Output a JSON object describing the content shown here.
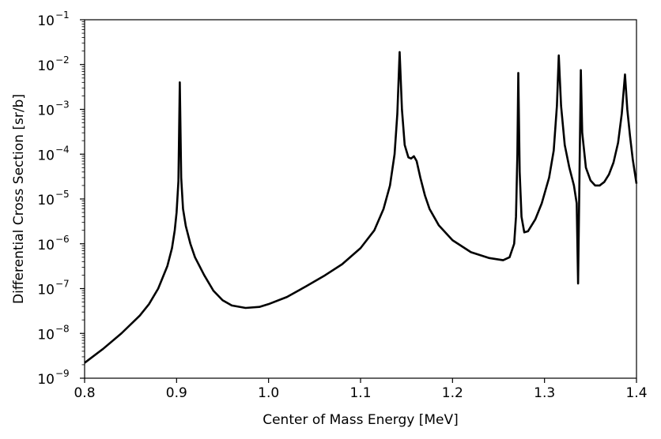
{
  "chart_data": {
    "type": "line",
    "xlabel": "Center of Mass Energy [MeV]",
    "ylabel": "Differential Cross Section [sr/b]",
    "xlim": [
      0.8,
      1.4
    ],
    "ylim": [
      1e-09,
      0.1
    ],
    "yscale": "log",
    "grid": false,
    "x_ticks": [
      {
        "value": 0.8,
        "label": "0.8"
      },
      {
        "value": 0.9,
        "label": "0.9"
      },
      {
        "value": 1.0,
        "label": "1.0"
      },
      {
        "value": 1.1,
        "label": "1.1"
      },
      {
        "value": 1.2,
        "label": "1.2"
      },
      {
        "value": 1.3,
        "label": "1.3"
      },
      {
        "value": 1.4,
        "label": "1.4"
      }
    ],
    "y_ticks": [
      {
        "value": 1e-09,
        "base": "10",
        "exp": "−9"
      },
      {
        "value": 1e-08,
        "base": "10",
        "exp": "−8"
      },
      {
        "value": 1e-07,
        "base": "10",
        "exp": "−7"
      },
      {
        "value": 1e-06,
        "base": "10",
        "exp": "−6"
      },
      {
        "value": 1e-05,
        "base": "10",
        "exp": "−5"
      },
      {
        "value": 0.0001,
        "base": "10",
        "exp": "−4"
      },
      {
        "value": 0.001,
        "base": "10",
        "exp": "−3"
      },
      {
        "value": 0.01,
        "base": "10",
        "exp": "−2"
      },
      {
        "value": 0.1,
        "base": "10",
        "exp": "−1"
      }
    ],
    "series": [
      {
        "color": "#000000",
        "points": [
          [
            0.8,
            2.2e-09
          ],
          [
            0.82,
            4.5e-09
          ],
          [
            0.84,
            1e-08
          ],
          [
            0.86,
            2.5e-08
          ],
          [
            0.87,
            4.5e-08
          ],
          [
            0.88,
            1e-07
          ],
          [
            0.89,
            3.2e-07
          ],
          [
            0.895,
            8e-07
          ],
          [
            0.898,
            2e-06
          ],
          [
            0.9,
            5e-06
          ],
          [
            0.902,
            2.5e-05
          ],
          [
            0.9035,
            0.004
          ],
          [
            0.905,
            3e-05
          ],
          [
            0.907,
            6e-06
          ],
          [
            0.91,
            2.5e-06
          ],
          [
            0.915,
            1e-06
          ],
          [
            0.92,
            5e-07
          ],
          [
            0.93,
            2e-07
          ],
          [
            0.94,
            9e-08
          ],
          [
            0.95,
            5.5e-08
          ],
          [
            0.96,
            4.2e-08
          ],
          [
            0.975,
            3.7e-08
          ],
          [
            0.99,
            3.9e-08
          ],
          [
            1.0,
            4.5e-08
          ],
          [
            1.02,
            6.5e-08
          ],
          [
            1.04,
            1.1e-07
          ],
          [
            1.06,
            1.9e-07
          ],
          [
            1.08,
            3.5e-07
          ],
          [
            1.1,
            8e-07
          ],
          [
            1.115,
            2e-06
          ],
          [
            1.125,
            6e-06
          ],
          [
            1.132,
            2e-05
          ],
          [
            1.137,
            0.0001
          ],
          [
            1.14,
            0.0008
          ],
          [
            1.1425,
            0.019
          ],
          [
            1.145,
            0.001
          ],
          [
            1.148,
            0.00016
          ],
          [
            1.152,
            8.5e-05
          ],
          [
            1.155,
            8e-05
          ],
          [
            1.158,
            9e-05
          ],
          [
            1.161,
            7e-05
          ],
          [
            1.165,
            3e-05
          ],
          [
            1.17,
            1.2e-05
          ],
          [
            1.175,
            6e-06
          ],
          [
            1.185,
            2.6e-06
          ],
          [
            1.2,
            1.2e-06
          ],
          [
            1.22,
            6.5e-07
          ],
          [
            1.24,
            4.8e-07
          ],
          [
            1.255,
            4.3e-07
          ],
          [
            1.262,
            5e-07
          ],
          [
            1.267,
            1e-06
          ],
          [
            1.269,
            4e-06
          ],
          [
            1.2705,
            0.0001
          ],
          [
            1.2715,
            0.0065
          ],
          [
            1.273,
            4e-05
          ],
          [
            1.275,
            4e-06
          ],
          [
            1.278,
            1.8e-06
          ],
          [
            1.282,
            1.9e-06
          ],
          [
            1.29,
            3.5e-06
          ],
          [
            1.297,
            8e-06
          ],
          [
            1.305,
            3e-05
          ],
          [
            1.31,
            0.00012
          ],
          [
            1.3135,
            0.0012
          ],
          [
            1.3155,
            0.016
          ],
          [
            1.318,
            0.0012
          ],
          [
            1.322,
            0.00016
          ],
          [
            1.327,
            5e-05
          ],
          [
            1.332,
            2e-05
          ],
          [
            1.335,
            8e-06
          ],
          [
            1.3365,
            1.3e-07
          ],
          [
            1.338,
            3e-05
          ],
          [
            1.3395,
            0.0075
          ],
          [
            1.341,
            0.0003
          ],
          [
            1.345,
            5e-05
          ],
          [
            1.35,
            2.6e-05
          ],
          [
            1.355,
            2e-05
          ],
          [
            1.36,
            2e-05
          ],
          [
            1.365,
            2.4e-05
          ],
          [
            1.37,
            3.5e-05
          ],
          [
            1.375,
            6.5e-05
          ],
          [
            1.38,
            0.00018
          ],
          [
            1.384,
            0.0008
          ],
          [
            1.3875,
            0.006
          ],
          [
            1.39,
            0.001
          ],
          [
            1.393,
            0.00025
          ],
          [
            1.396,
            7.5e-05
          ],
          [
            1.4,
            2.2e-05
          ]
        ]
      }
    ]
  }
}
